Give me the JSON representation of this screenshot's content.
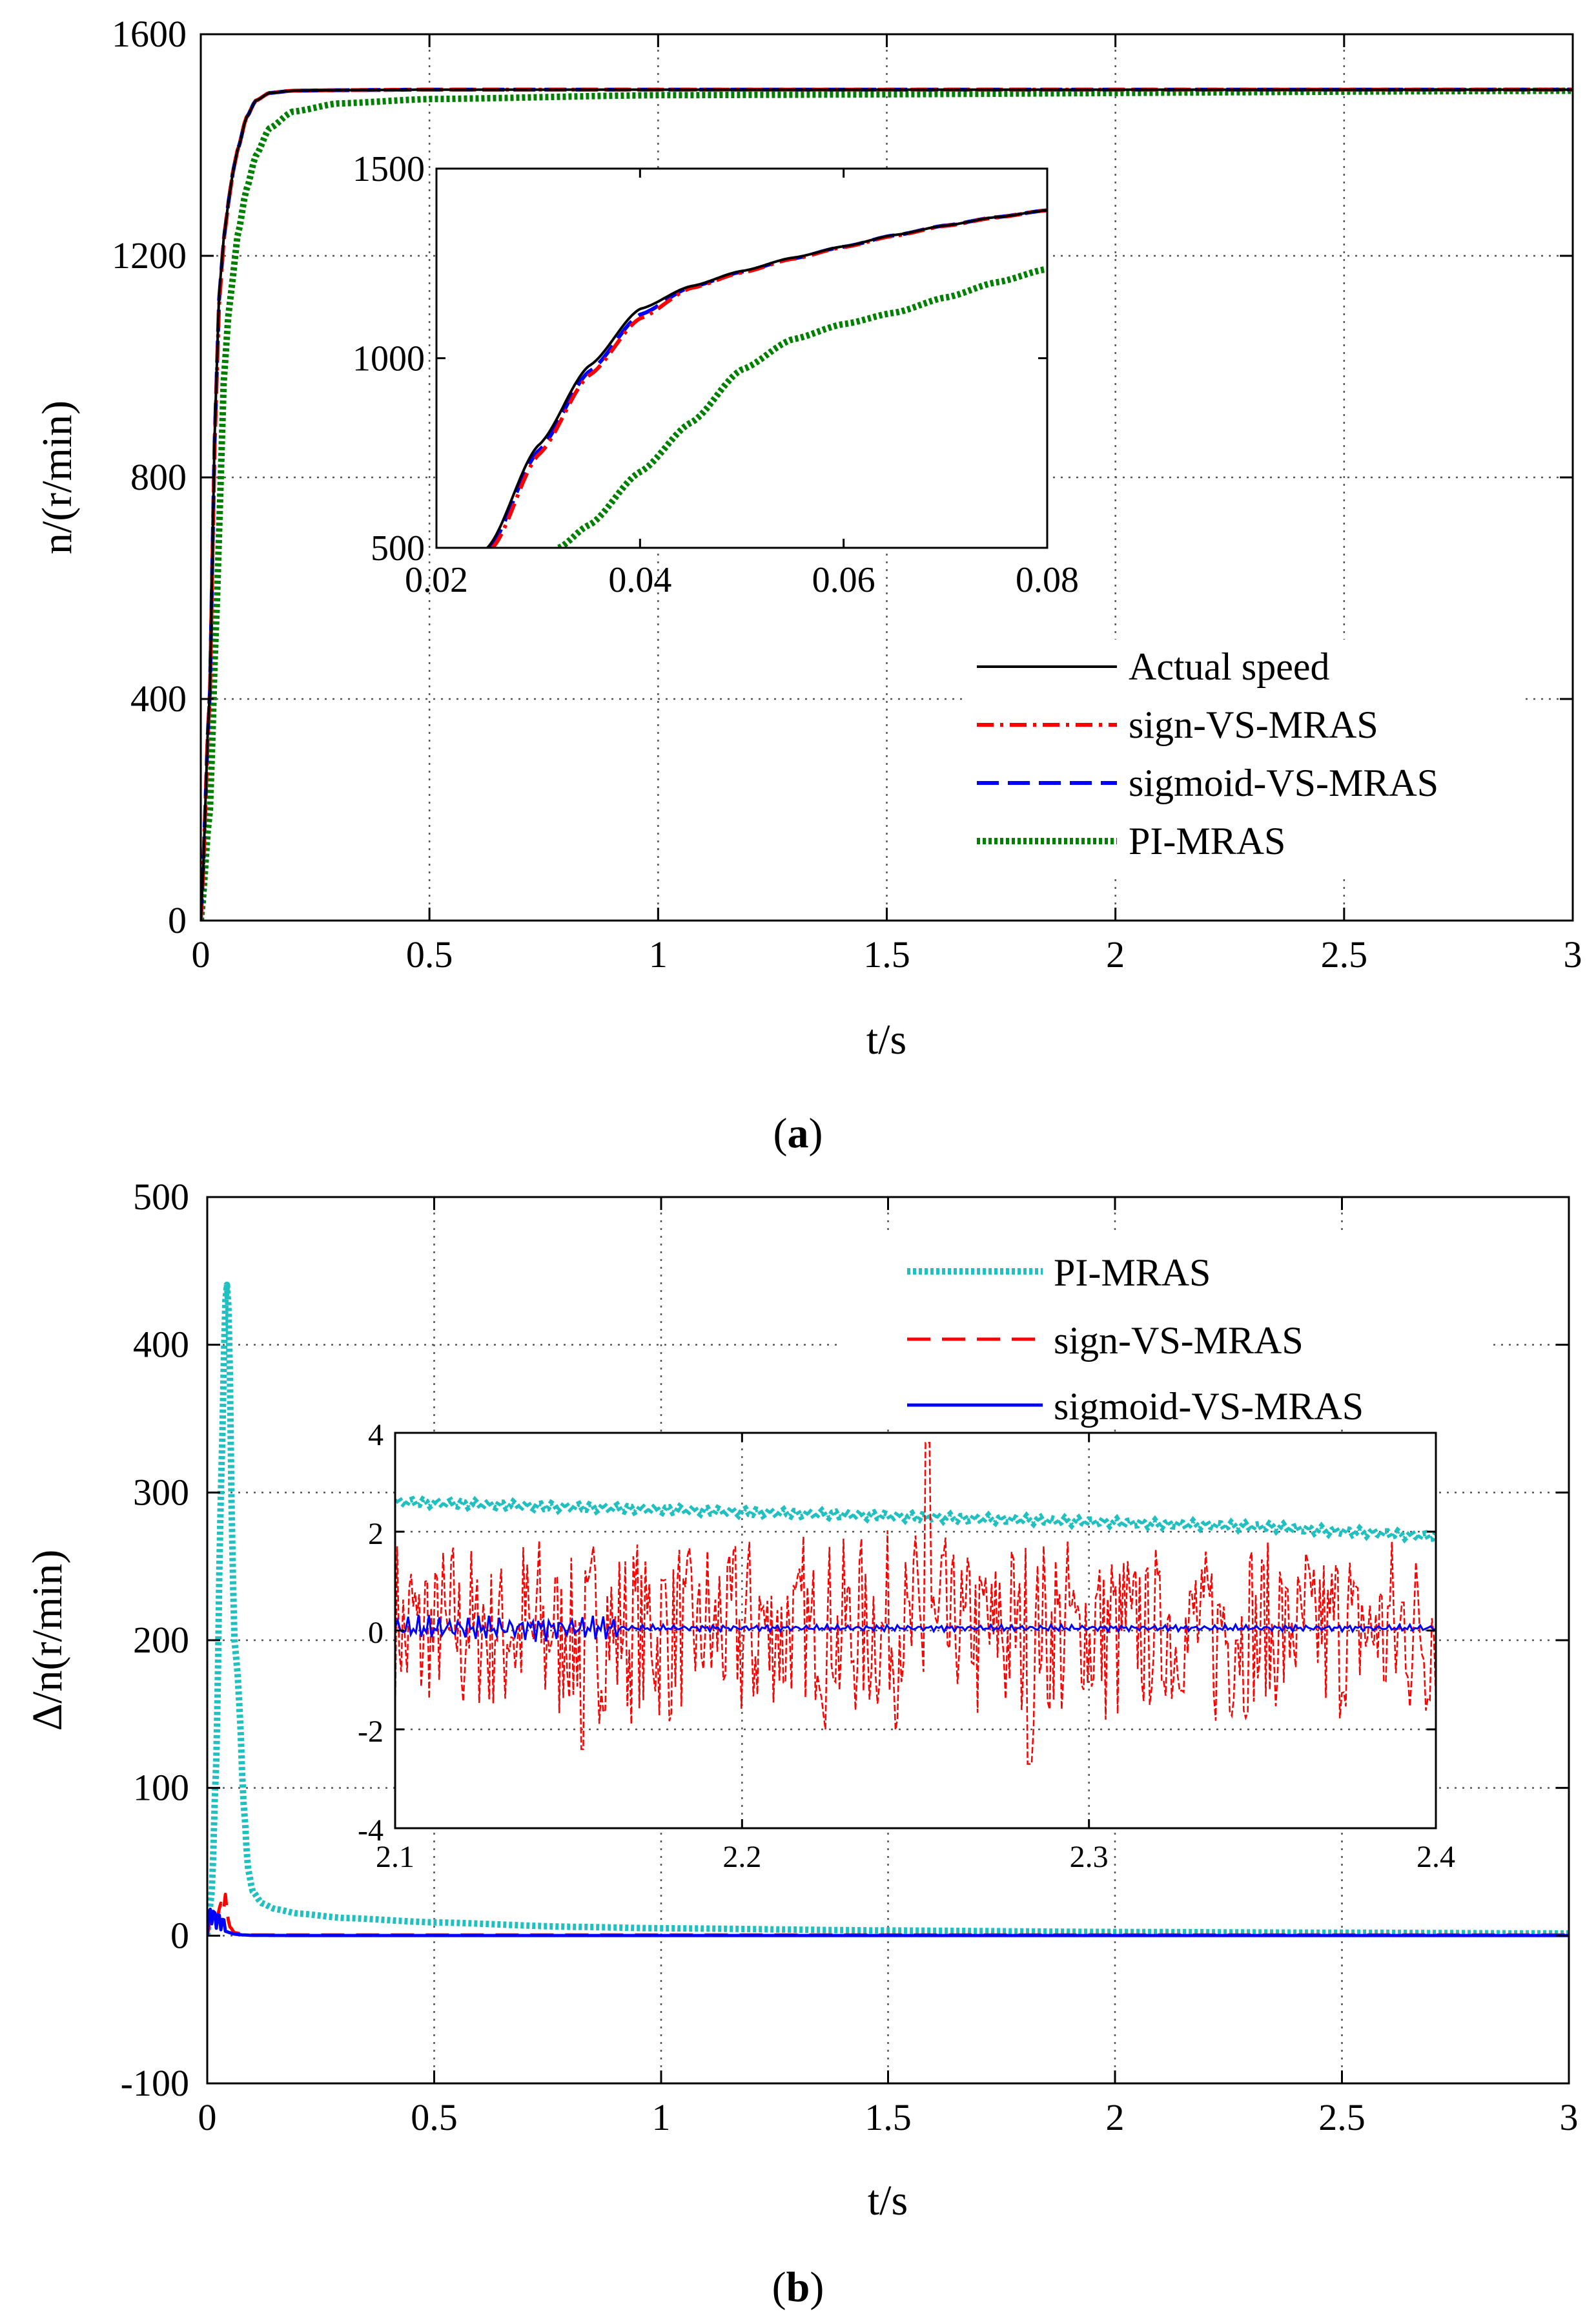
{
  "colors": {
    "actual": "#000000",
    "sign": "#ff0000",
    "sigmoid": "#0000ff",
    "pi_a": "#008000",
    "pi_b": "#20c0c0",
    "grid": "#555555"
  },
  "chart_data": [
    {
      "id": "a",
      "type": "line",
      "caption": "(a)",
      "caption_prefix": "(",
      "caption_letter": "a",
      "caption_suffix": ")",
      "xlabel": "t/s",
      "ylabel": "n/(r/min)",
      "xlim": [
        0,
        3
      ],
      "ylim": [
        0,
        1600
      ],
      "xticks": [
        0,
        0.5,
        1,
        1.5,
        2,
        2.5,
        3
      ],
      "xtick_labels": [
        "0",
        "0.5",
        "1",
        "1.5",
        "2",
        "2.5",
        "3"
      ],
      "yticks": [
        0,
        400,
        800,
        1200,
        1600
      ],
      "ytick_labels": [
        "0",
        "400",
        "800",
        "1200",
        "1600"
      ],
      "grid": true,
      "legend": "bottom-right",
      "series": [
        {
          "name": "Actual speed",
          "style": "solid",
          "x": [
            0,
            0.02,
            0.03,
            0.04,
            0.05,
            0.06,
            0.07,
            0.08,
            0.1,
            0.12,
            0.15,
            0.2,
            0.3,
            0.5,
            3
          ],
          "y": [
            0,
            420,
            870,
            1130,
            1230,
            1295,
            1350,
            1390,
            1450,
            1480,
            1494,
            1498,
            1499,
            1500,
            1500
          ]
        },
        {
          "name": "sign-VS-MRAS",
          "style": "dashdot",
          "x": [
            0,
            0.02,
            0.03,
            0.04,
            0.05,
            0.06,
            0.07,
            0.08,
            0.1,
            0.12,
            0.15,
            0.2,
            0.3,
            0.5,
            3
          ],
          "y": [
            0,
            410,
            850,
            1110,
            1225,
            1293,
            1349,
            1390,
            1450,
            1480,
            1494,
            1498,
            1499,
            1500,
            1500
          ]
        },
        {
          "name": "sigmoid-VS-MRAS",
          "style": "dashed",
          "x": [
            0,
            0.02,
            0.03,
            0.04,
            0.05,
            0.06,
            0.07,
            0.08,
            0.1,
            0.12,
            0.15,
            0.2,
            0.3,
            0.5,
            3
          ],
          "y": [
            0,
            415,
            860,
            1120,
            1228,
            1294,
            1350,
            1390,
            1450,
            1480,
            1494,
            1498,
            1499,
            1500,
            1500
          ]
        },
        {
          "name": "PI-MRAS",
          "style": "dotted",
          "x": [
            0,
            0.02,
            0.032,
            0.04,
            0.05,
            0.06,
            0.07,
            0.08,
            0.1,
            0.12,
            0.15,
            0.2,
            0.3,
            0.5,
            1,
            3
          ],
          "y": [
            0,
            200,
            500,
            700,
            970,
            1090,
            1160,
            1235,
            1320,
            1380,
            1430,
            1460,
            1475,
            1483,
            1490,
            1498
          ]
        }
      ],
      "inset": {
        "xlim": [
          0.02,
          0.08
        ],
        "ylim": [
          500,
          1500
        ],
        "xticks": [
          0.02,
          0.04,
          0.06,
          0.08
        ],
        "xtick_labels": [
          "0.02",
          "0.04",
          "0.06",
          "0.08"
        ],
        "yticks": [
          500,
          1000,
          1500
        ],
        "ytick_labels": [
          "500",
          "1000",
          "1500"
        ],
        "series": [
          {
            "name": "Actual speed",
            "x": [
              0.025,
              0.03,
              0.035,
              0.04,
              0.045,
              0.05,
              0.055,
              0.06,
              0.065,
              0.07,
              0.075,
              0.08
            ],
            "y": [
              500,
              770,
              980,
              1130,
              1190,
              1230,
              1265,
              1295,
              1325,
              1350,
              1372,
              1390
            ]
          },
          {
            "name": "sign-VS-MRAS",
            "x": [
              0.0255,
              0.03,
              0.035,
              0.04,
              0.045,
              0.05,
              0.055,
              0.06,
              0.065,
              0.07,
              0.075,
              0.08
            ],
            "y": [
              500,
              745,
              955,
              1105,
              1185,
              1226,
              1262,
              1293,
              1323,
              1349,
              1371,
              1390
            ]
          },
          {
            "name": "sigmoid-VS-MRAS",
            "x": [
              0.0252,
              0.03,
              0.035,
              0.04,
              0.045,
              0.05,
              0.055,
              0.06,
              0.065,
              0.07,
              0.075,
              0.08
            ],
            "y": [
              500,
              755,
              965,
              1115,
              1188,
              1228,
              1263,
              1294,
              1324,
              1350,
              1372,
              1390
            ]
          },
          {
            "name": "PI-MRAS",
            "x": [
              0.032,
              0.035,
              0.04,
              0.045,
              0.05,
              0.055,
              0.06,
              0.065,
              0.07,
              0.075,
              0.08
            ],
            "y": [
              500,
              560,
              700,
              830,
              970,
              1050,
              1090,
              1120,
              1160,
              1200,
              1235
            ]
          }
        ]
      }
    },
    {
      "id": "b",
      "type": "line",
      "caption": "(b)",
      "caption_prefix": "(",
      "caption_letter": "b",
      "caption_suffix": ")",
      "xlabel": "t/s",
      "ylabel": "Δ/n(r/min)",
      "xlim": [
        0,
        3
      ],
      "ylim": [
        -100,
        500
      ],
      "xticks": [
        0,
        0.5,
        1,
        1.5,
        2,
        2.5,
        3
      ],
      "xtick_labels": [
        "0",
        "0.5",
        "1",
        "1.5",
        "2",
        "2.5",
        "3"
      ],
      "yticks": [
        -100,
        0,
        100,
        200,
        300,
        400,
        500
      ],
      "ytick_labels": [
        "-100",
        "0",
        "100",
        "200",
        "300",
        "400",
        "500"
      ],
      "grid": true,
      "legend": "top-right",
      "series": [
        {
          "name": "PI-MRAS",
          "style": "dotted",
          "x": [
            0,
            0.01,
            0.02,
            0.03,
            0.04,
            0.045,
            0.05,
            0.055,
            0.06,
            0.065,
            0.07,
            0.08,
            0.09,
            0.1,
            0.12,
            0.15,
            0.2,
            0.3,
            0.5,
            0.8,
            1,
            1.5,
            2,
            2.5,
            3
          ],
          "y": [
            0,
            30,
            120,
            300,
            430,
            445,
            380,
            260,
            200,
            185,
            160,
            90,
            45,
            30,
            22,
            18,
            15,
            12,
            9,
            6,
            5,
            3.5,
            2.5,
            2,
            1.5
          ]
        },
        {
          "name": "sign-VS-MRAS",
          "style": "dashed",
          "x": [
            0,
            0.01,
            0.02,
            0.03,
            0.035,
            0.04,
            0.045,
            0.05,
            0.06,
            0.08,
            0.1,
            0.2,
            0.5,
            1,
            1.5,
            2,
            2.5,
            3
          ],
          "y": [
            0,
            18,
            10,
            22,
            15,
            28,
            12,
            6,
            2,
            1,
            0.5,
            0.5,
            0.5,
            0.5,
            0.5,
            0.5,
            0.5,
            0.5
          ]
        },
        {
          "name": "sigmoid-VS-MRAS",
          "style": "solid",
          "x": [
            0,
            0.005,
            0.01,
            0.015,
            0.02,
            0.025,
            0.03,
            0.035,
            0.04,
            0.05,
            0.06,
            0.08,
            0.1,
            0.2,
            0.5,
            1,
            1.5,
            2,
            2.5,
            3
          ],
          "y": [
            0,
            22,
            8,
            20,
            5,
            18,
            4,
            14,
            3,
            2,
            1,
            0.5,
            0.2,
            0.1,
            0.1,
            0.1,
            0.1,
            0.1,
            0.1,
            0.1
          ]
        }
      ],
      "inset": {
        "xlim": [
          2.1,
          2.4
        ],
        "ylim": [
          -4,
          4
        ],
        "xticks": [
          2.1,
          2.2,
          2.3,
          2.4
        ],
        "xtick_labels": [
          "2.1",
          "2.2",
          "2.3",
          "2.4"
        ],
        "yticks": [
          -4,
          -2,
          0,
          2,
          4
        ],
        "ytick_labels": [
          "-4",
          "-2",
          "0",
          "2",
          "4"
        ],
        "series": [
          {
            "name": "PI-MRAS",
            "x": [
              2.1,
              2.125,
              2.15,
              2.175,
              2.2,
              2.225,
              2.25,
              2.275,
              2.3,
              2.325,
              2.35,
              2.375,
              2.4
            ],
            "y": [
              2.6,
              2.55,
              2.5,
              2.45,
              2.4,
              2.35,
              2.3,
              2.25,
              2.2,
              2.15,
              2.1,
              2.0,
              1.9
            ]
          },
          {
            "name": "sign-VS-MRAS",
            "noise": "±2, peak 3.8 at t≈2.26, min -2.7 at t≈2.28",
            "x": [
              2.1,
              2.4
            ],
            "y": [
              0,
              0
            ]
          },
          {
            "name": "sigmoid-VS-MRAS",
            "x": [
              2.1,
              2.13,
              2.15,
              2.16,
              2.2,
              2.4
            ],
            "y": [
              0.1,
              0.3,
              -0.2,
              0.2,
              0.0,
              0.0
            ]
          }
        ]
      }
    }
  ]
}
